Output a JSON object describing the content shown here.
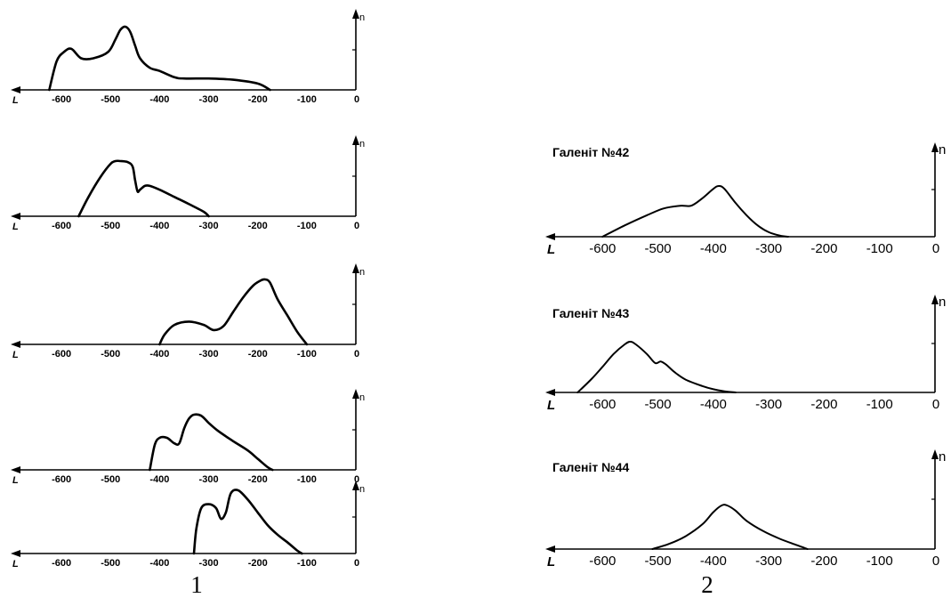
{
  "panel_labels": [
    "1",
    "2"
  ],
  "chart_data": [
    {
      "type": "line",
      "group": "1",
      "title": "",
      "xlabel": "L",
      "ylabel": "n",
      "xlim": [
        -700,
        0
      ],
      "ylim": [
        0,
        1
      ],
      "x_ticks": [
        "-600",
        "-500",
        "-400",
        "-300",
        "-200",
        "-100",
        "0"
      ],
      "series": [
        {
          "x": [
            -625,
            -610,
            -595,
            -580,
            -560,
            -535,
            -505,
            -490,
            -480,
            -470,
            -460,
            -450,
            -440,
            -420,
            -400,
            -370,
            -350,
            -300,
            -250,
            -200,
            -175
          ],
          "y": [
            0,
            0.45,
            0.6,
            0.65,
            0.5,
            0.5,
            0.6,
            0.8,
            0.95,
            1.0,
            0.92,
            0.7,
            0.5,
            0.35,
            0.3,
            0.2,
            0.18,
            0.18,
            0.16,
            0.1,
            0
          ]
        }
      ]
    },
    {
      "type": "line",
      "group": "1",
      "title": "",
      "xlabel": "L",
      "ylabel": "n",
      "xlim": [
        -700,
        0
      ],
      "ylim": [
        0,
        1
      ],
      "x_ticks": [
        "-600",
        "-500",
        "-400",
        "-300",
        "-200",
        "-100",
        "0"
      ],
      "series": [
        {
          "x": [
            -565,
            -545,
            -520,
            -500,
            -490,
            -480,
            -465,
            -455,
            -450,
            -445,
            -440,
            -430,
            -420,
            -400,
            -370,
            -340,
            -310,
            -300
          ],
          "y": [
            0,
            0.35,
            0.72,
            0.95,
            1.0,
            1.0,
            0.98,
            0.9,
            0.65,
            0.45,
            0.48,
            0.55,
            0.55,
            0.48,
            0.35,
            0.22,
            0.08,
            0
          ]
        }
      ]
    },
    {
      "type": "line",
      "group": "1",
      "title": "",
      "xlabel": "L",
      "ylabel": "n",
      "xlim": [
        -700,
        0
      ],
      "ylim": [
        0,
        1
      ],
      "x_ticks": [
        "-600",
        "-500",
        "-400",
        "-300",
        "-200",
        "-100",
        "0"
      ],
      "series": [
        {
          "x": [
            -400,
            -390,
            -370,
            -340,
            -310,
            -290,
            -270,
            -250,
            -230,
            -210,
            -195,
            -185,
            -175,
            -160,
            -140,
            -120,
            -100
          ],
          "y": [
            0,
            0.15,
            0.3,
            0.35,
            0.3,
            0.22,
            0.28,
            0.5,
            0.72,
            0.9,
            0.98,
            1.0,
            0.95,
            0.7,
            0.45,
            0.2,
            0
          ]
        }
      ]
    },
    {
      "type": "line",
      "group": "1",
      "title": "",
      "xlabel": "L",
      "ylabel": "n",
      "xlim": [
        -700,
        0
      ],
      "ylim": [
        0,
        1
      ],
      "x_ticks": [
        "-600",
        "-500",
        "-400",
        "-300",
        "-200",
        "-100",
        "0"
      ],
      "series": [
        {
          "x": [
            -420,
            -410,
            -400,
            -385,
            -370,
            -360,
            -350,
            -340,
            -330,
            -315,
            -300,
            -280,
            -250,
            -220,
            -200,
            -180,
            -170
          ],
          "y": [
            0,
            0.45,
            0.58,
            0.58,
            0.48,
            0.48,
            0.75,
            0.93,
            1.0,
            0.98,
            0.85,
            0.7,
            0.52,
            0.35,
            0.2,
            0.05,
            0
          ]
        }
      ]
    },
    {
      "type": "line",
      "group": "1",
      "title": "",
      "xlabel": "L",
      "ylabel": "n",
      "xlim": [
        -700,
        0
      ],
      "ylim": [
        0,
        1
      ],
      "x_ticks": [
        "-600",
        "-500",
        "-400",
        "-300",
        "-200",
        "-100",
        "0"
      ],
      "series": [
        {
          "x": [
            -330,
            -325,
            -315,
            -300,
            -285,
            -275,
            -265,
            -255,
            -240,
            -220,
            -200,
            -180,
            -160,
            -140,
            -120,
            -110
          ],
          "y": [
            0,
            0.4,
            0.72,
            0.78,
            0.72,
            0.55,
            0.65,
            0.95,
            1.0,
            0.85,
            0.65,
            0.45,
            0.3,
            0.18,
            0.05,
            0
          ]
        }
      ]
    },
    {
      "type": "line",
      "group": "2",
      "title": "Галеніт №42",
      "xlabel": "L",
      "ylabel": "n",
      "xlim": [
        -700,
        0
      ],
      "ylim": [
        0,
        1
      ],
      "x_ticks": [
        "-600",
        "-500",
        "-400",
        "-300",
        "-200",
        "-100",
        "0"
      ],
      "series": [
        {
          "x": [
            -600,
            -560,
            -520,
            -490,
            -460,
            -440,
            -420,
            -400,
            -390,
            -380,
            -360,
            -340,
            -320,
            -300,
            -280,
            -265
          ],
          "y": [
            0,
            0.2,
            0.38,
            0.5,
            0.55,
            0.55,
            0.68,
            0.85,
            0.9,
            0.85,
            0.6,
            0.38,
            0.2,
            0.08,
            0.02,
            0
          ]
        }
      ]
    },
    {
      "type": "line",
      "group": "2",
      "title": "Галеніт №43",
      "xlabel": "L",
      "ylabel": "n",
      "xlim": [
        -700,
        0
      ],
      "ylim": [
        0,
        1
      ],
      "x_ticks": [
        "-600",
        "-500",
        "-400",
        "-300",
        "-200",
        "-100",
        "0"
      ],
      "series": [
        {
          "x": [
            -645,
            -620,
            -600,
            -580,
            -560,
            -550,
            -540,
            -520,
            -505,
            -495,
            -485,
            -470,
            -450,
            -420,
            -400,
            -380,
            -360
          ],
          "y": [
            0,
            0.25,
            0.48,
            0.72,
            0.9,
            0.95,
            0.9,
            0.72,
            0.55,
            0.58,
            0.52,
            0.38,
            0.24,
            0.12,
            0.06,
            0.02,
            0
          ]
        }
      ]
    },
    {
      "type": "line",
      "group": "2",
      "title": "Галеніт №44",
      "xlabel": "L",
      "ylabel": "n",
      "xlim": [
        -700,
        0
      ],
      "ylim": [
        0,
        1
      ],
      "x_ticks": [
        "-600",
        "-500",
        "-400",
        "-300",
        "-200",
        "-100",
        "0"
      ],
      "series": [
        {
          "x": [
            -510,
            -480,
            -450,
            -420,
            -400,
            -385,
            -375,
            -360,
            -340,
            -310,
            -280,
            -250,
            -230
          ],
          "y": [
            0,
            0.1,
            0.25,
            0.48,
            0.72,
            0.85,
            0.85,
            0.75,
            0.55,
            0.35,
            0.2,
            0.08,
            0
          ]
        }
      ]
    }
  ]
}
